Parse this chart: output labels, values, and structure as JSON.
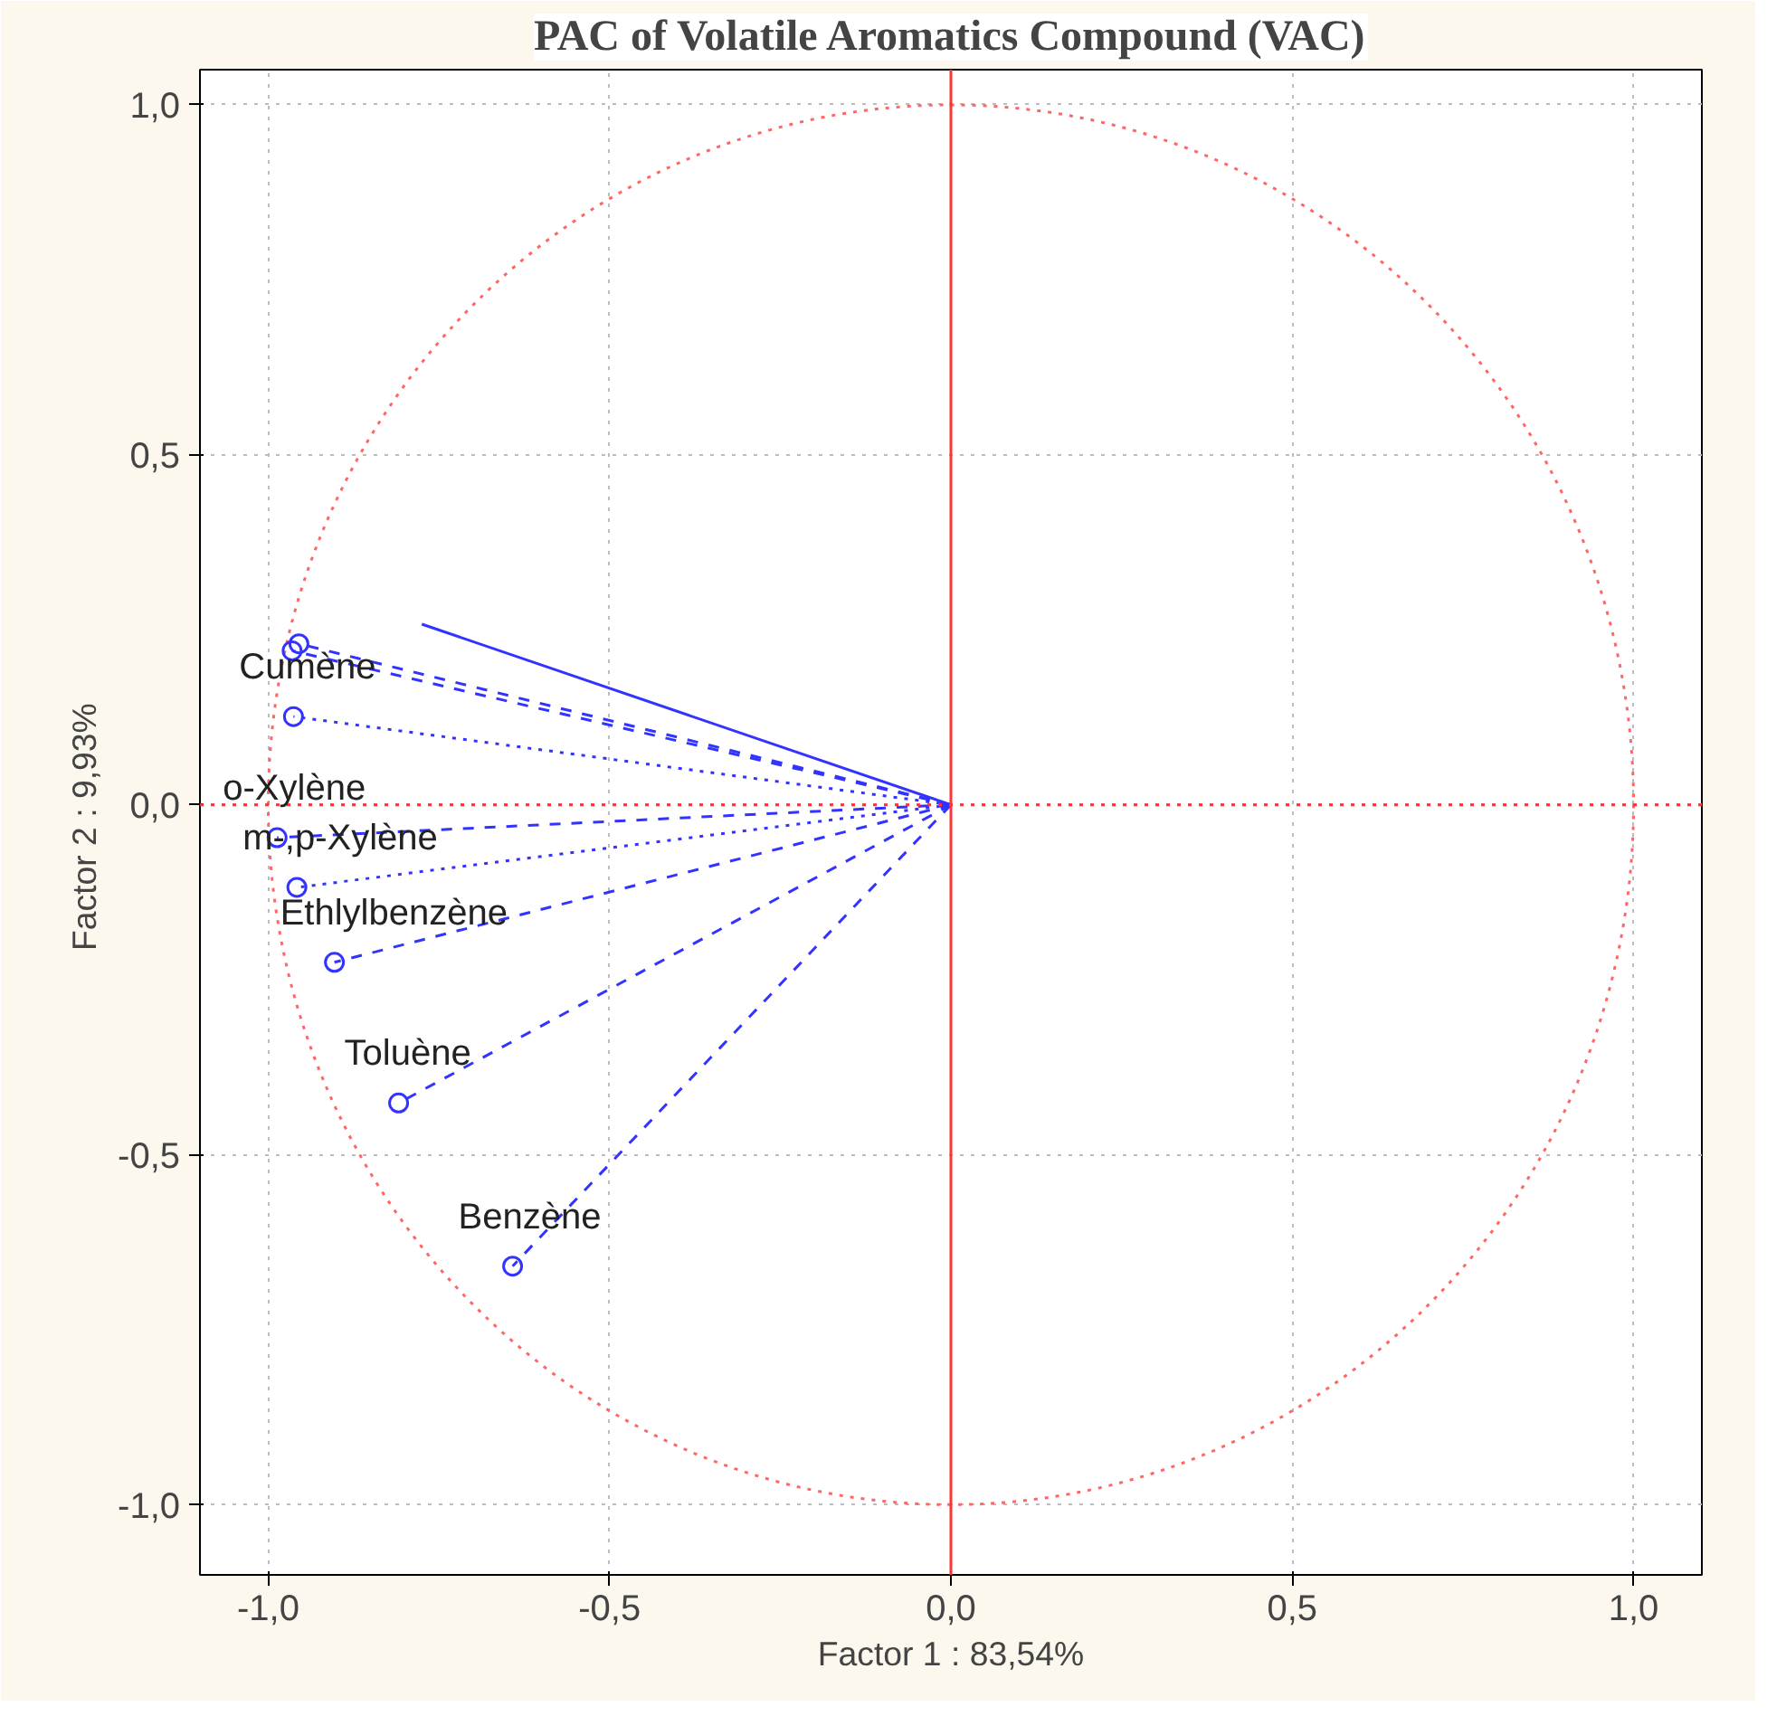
{
  "chart_data": {
    "type": "line",
    "title": "PAC of Volatile Aromatics Compound (VAC)",
    "xlabel": "Factor 1 : 83,54%",
    "ylabel": "Factor 2 :  9,93%",
    "xlim": [
      -1.1,
      1.1
    ],
    "ylim": [
      -1.1,
      1.05
    ],
    "xticks": [
      {
        "value": -1,
        "label": "-1,0"
      },
      {
        "value": -0.5,
        "label": "-0,5"
      },
      {
        "value": 0,
        "label": "0,0"
      },
      {
        "value": 0.5,
        "label": "0,5"
      },
      {
        "value": 1,
        "label": "1,0"
      }
    ],
    "yticks": [
      {
        "value": -1,
        "label": "-1,0"
      },
      {
        "value": -0.5,
        "label": "-0,5"
      },
      {
        "value": 0,
        "label": "0,0"
      },
      {
        "value": 0.5,
        "label": "0,5"
      },
      {
        "value": 1,
        "label": "1,0"
      }
    ],
    "grid": true,
    "series": [
      {
        "color": "#3333ff",
        "line_style": "solid",
        "x": [
          0,
          -0.775
        ],
        "values": [
          0,
          0.258
        ]
      },
      {
        "color": "#3333ff",
        "line_style": "dashed",
        "x": [
          0,
          -0.965
        ],
        "values": [
          0,
          0.22
        ]
      },
      {
        "color": "#3333ff",
        "line_style": "dashed",
        "x": [
          0,
          -0.955
        ],
        "values": [
          0,
          0.23
        ]
      },
      {
        "color": "#3333ff",
        "line_style": "dotted",
        "x": [
          0,
          -0.963
        ],
        "values": [
          0,
          0.126
        ]
      },
      {
        "color": "#3333ff",
        "line_style": "dashed",
        "x": [
          0,
          -0.987
        ],
        "values": [
          0,
          -0.047
        ]
      },
      {
        "color": "#3333ff",
        "line_style": "dotted",
        "x": [
          0,
          -0.958
        ],
        "values": [
          0,
          -0.118
        ]
      },
      {
        "color": "#3333ff",
        "line_style": "dashed",
        "x": [
          0,
          -0.903
        ],
        "values": [
          0,
          -0.225
        ]
      },
      {
        "color": "#3333ff",
        "line_style": "dashed",
        "x": [
          0,
          -0.809
        ],
        "values": [
          0,
          -0.426
        ]
      },
      {
        "color": "#3333ff",
        "line_style": "dashed",
        "x": [
          0,
          -0.642
        ],
        "values": [
          0,
          -0.659
        ]
      },
      {
        "type": "scatter",
        "color": "#3333ff",
        "marker": "circle",
        "x": [
          -0.965,
          -0.955,
          -0.963,
          -0.987,
          -0.958,
          -0.903,
          -0.809,
          -0.642
        ],
        "values": [
          0.22,
          0.23,
          0.126,
          -0.047,
          -0.118,
          -0.225,
          -0.426,
          -0.659
        ]
      }
    ],
    "ref_lines": [
      {
        "axis": "x",
        "value": 0,
        "color": "#ff3333",
        "line_style": "solid"
      },
      {
        "axis": "y",
        "value": 0,
        "color": "#ff3333",
        "line_style": "dotted"
      }
    ],
    "annotations": [
      {
        "text": "Cumène",
        "x": -0.963,
        "y": 0.126
      },
      {
        "text": "o-Xylène",
        "x": -0.987,
        "y": -0.047
      },
      {
        "text": "m-,p-Xylène",
        "x": -0.958,
        "y": -0.118
      },
      {
        "text": "Ethlylbenzène",
        "x": -0.903,
        "y": -0.225
      },
      {
        "text": "Toluène",
        "x": -0.809,
        "y": -0.426
      },
      {
        "text": "Benzène",
        "x": -0.642,
        "y": -0.659
      }
    ]
  }
}
